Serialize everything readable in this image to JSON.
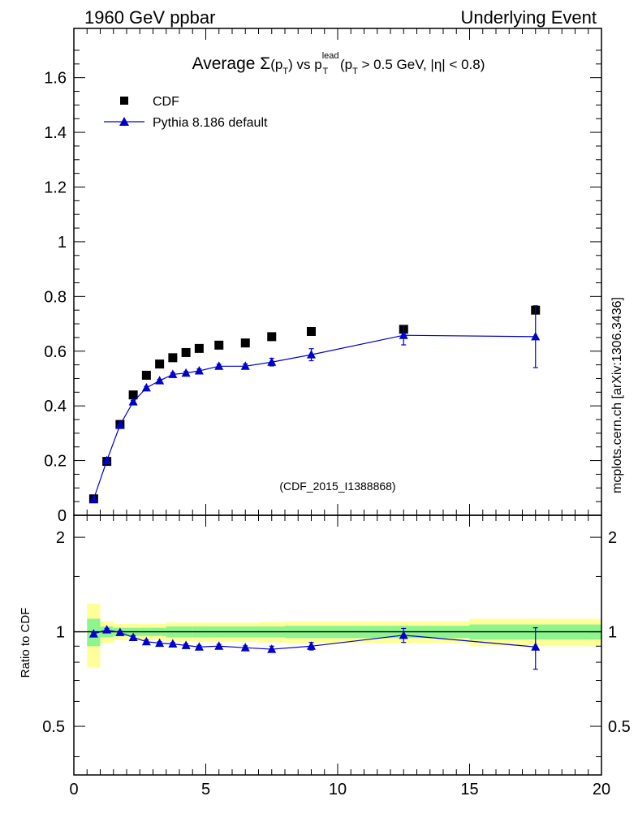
{
  "header": {
    "left": "1960 GeV ppbar",
    "right": "Underlying Event"
  },
  "side_label": "mcplots.cern.ch [arXiv:1306.3436]",
  "watermark": "(CDF_2015_I1388868)",
  "chart_data": [
    {
      "type": "scatter",
      "title_parts": {
        "pre": "Average ",
        "sigma": "Σ",
        "p": "(p",
        "sub_T": "T",
        "close": ")",
        "vs": " vs p",
        "sup_lead": "lead",
        "sub_T2": "T",
        "tail_open": " (p",
        "sub_T3": "T",
        "tail": " > 0.5 GeV, |η| < 0.8)"
      },
      "legend": {
        "placement": "top-left",
        "entries": [
          "CDF",
          "Pythia 8.186 default"
        ]
      },
      "xlim": [
        0,
        20
      ],
      "ylim": [
        0,
        1.78
      ],
      "y_ticks": [
        0,
        0.2,
        0.4,
        0.6,
        0.8,
        1,
        1.2,
        1.4,
        1.6
      ],
      "y_tick_labels": [
        "0",
        "0.2",
        "0.4",
        "0.6",
        "0.8",
        "1",
        "1.2",
        "1.4",
        "1.6"
      ],
      "series": [
        {
          "name": "CDF",
          "marker": "square",
          "color": "#000000",
          "x": [
            0.75,
            1.25,
            1.75,
            2.25,
            2.75,
            3.25,
            3.75,
            4.25,
            4.75,
            5.5,
            6.5,
            7.5,
            9.0,
            12.5,
            17.5
          ],
          "y": [
            0.06,
            0.197,
            0.332,
            0.44,
            0.512,
            0.553,
            0.576,
            0.595,
            0.61,
            0.622,
            0.63,
            0.653,
            0.672,
            0.68,
            0.75
          ]
        },
        {
          "name": "Pythia 8.186 default",
          "marker": "triangle",
          "color": "#0000cc",
          "x": [
            0.75,
            1.25,
            1.75,
            2.25,
            2.75,
            3.25,
            3.75,
            4.25,
            4.75,
            5.5,
            6.5,
            7.5,
            9.0,
            12.5,
            17.5
          ],
          "y": [
            0.059,
            0.2,
            0.33,
            0.415,
            0.466,
            0.492,
            0.515,
            0.52,
            0.528,
            0.545,
            0.545,
            0.56,
            0.587,
            0.658,
            0.653
          ],
          "yerr": [
            0.003,
            0.003,
            0.004,
            0.005,
            0.005,
            0.005,
            0.006,
            0.006,
            0.007,
            0.007,
            0.008,
            0.014,
            0.022,
            0.035,
            0.113
          ]
        }
      ]
    },
    {
      "type": "scatter",
      "ylabel": "Ratio to CDF",
      "xlim": [
        0,
        20
      ],
      "ylim": [
        0.35,
        2.35
      ],
      "y_scale": "log",
      "x_ticks": [
        0,
        5,
        10,
        15,
        20
      ],
      "x_tick_labels": [
        "0",
        "5",
        "10",
        "15",
        "20"
      ],
      "y_ticks": [
        0.5,
        1,
        2
      ],
      "y_tick_labels": [
        "0.5",
        "1",
        "2"
      ],
      "bands": {
        "x_edges": [
          0.5,
          1.0,
          1.5,
          2.0,
          2.5,
          3.0,
          3.5,
          4.0,
          4.5,
          5.0,
          6.0,
          7.0,
          8.0,
          10.0,
          15.0,
          20.0
        ],
        "inner_lo": [
          0.9,
          0.96,
          0.97,
          0.97,
          0.97,
          0.97,
          0.96,
          0.96,
          0.96,
          0.96,
          0.96,
          0.96,
          0.955,
          0.955,
          0.945
        ],
        "inner_hi": [
          1.1,
          1.04,
          1.03,
          1.03,
          1.03,
          1.03,
          1.04,
          1.04,
          1.04,
          1.04,
          1.04,
          1.04,
          1.045,
          1.045,
          1.055
        ],
        "outer_lo": [
          0.77,
          0.92,
          0.94,
          0.94,
          0.94,
          0.94,
          0.93,
          0.93,
          0.93,
          0.93,
          0.93,
          0.925,
          0.92,
          0.92,
          0.9
        ],
        "outer_hi": [
          1.23,
          1.08,
          1.06,
          1.06,
          1.06,
          1.06,
          1.07,
          1.07,
          1.07,
          1.07,
          1.07,
          1.075,
          1.08,
          1.08,
          1.1
        ],
        "inner_color": "#8ef58e",
        "outer_color": "#ffff99"
      },
      "series": [
        {
          "name": "Pythia 8.186 default",
          "marker": "triangle",
          "color": "#0000cc",
          "x": [
            0.75,
            1.25,
            1.75,
            2.25,
            2.75,
            3.25,
            3.75,
            4.25,
            4.75,
            5.5,
            6.5,
            7.5,
            9.0,
            12.5,
            17.5
          ],
          "y": [
            0.985,
            1.015,
            0.995,
            0.96,
            0.93,
            0.92,
            0.915,
            0.905,
            0.895,
            0.9,
            0.89,
            0.88,
            0.9,
            0.975,
            0.895
          ],
          "yerr": [
            0.01,
            0.01,
            0.01,
            0.012,
            0.012,
            0.01,
            0.01,
            0.01,
            0.01,
            0.012,
            0.012,
            0.02,
            0.025,
            0.05,
            0.135
          ]
        }
      ]
    }
  ]
}
